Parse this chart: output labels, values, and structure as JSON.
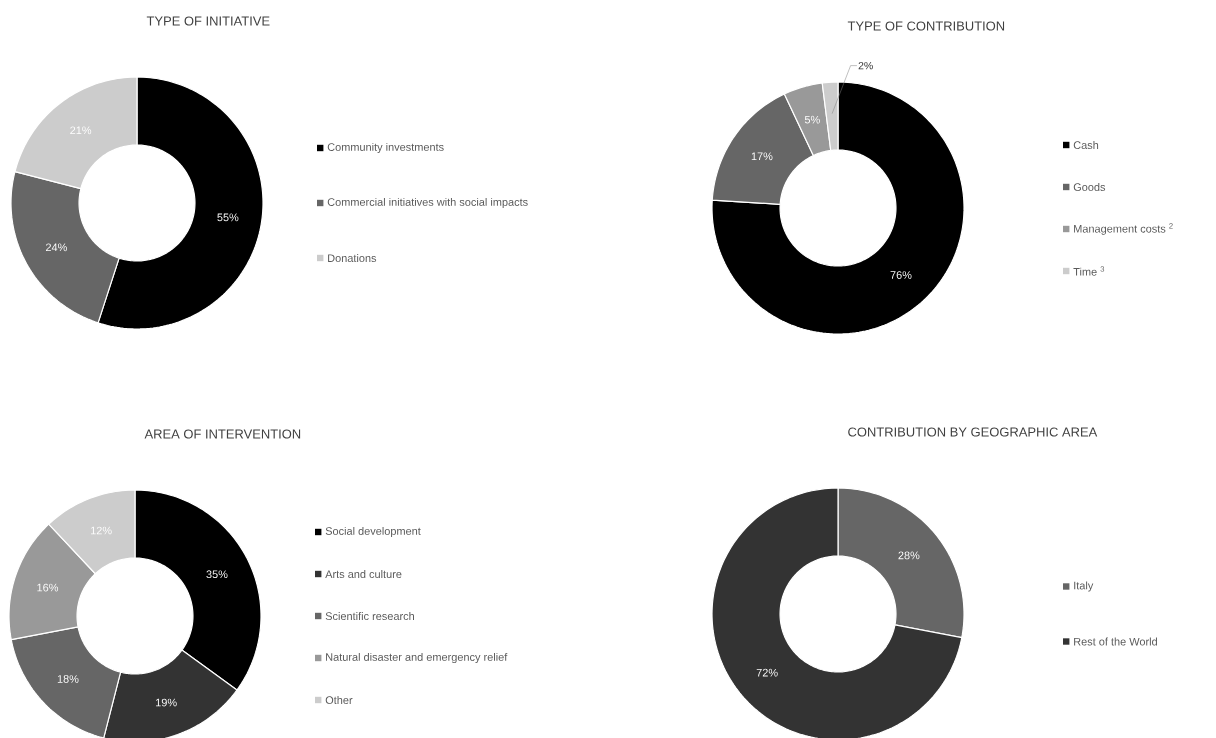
{
  "chart_data": [
    {
      "type": "donut",
      "title": "TYPE OF INITIATIVE",
      "categories": [
        "Community investments",
        "Commercial initiatives with social impacts",
        "Donations"
      ],
      "values": [
        55,
        24,
        21
      ],
      "value_labels": [
        "55%",
        "24%",
        "21%"
      ],
      "colors": [
        "#000000",
        "#666666",
        "#cccccc"
      ],
      "legend": "right"
    },
    {
      "type": "donut",
      "title": "TYPE OF CONTRIBUTION",
      "categories": [
        "Cash",
        "Goods",
        "Management costs $^{2}$",
        "Time $^{3}$"
      ],
      "values": [
        76,
        17,
        5,
        2
      ],
      "value_labels": [
        "76%",
        "17%",
        "5%",
        "2%"
      ],
      "colors": [
        "#000000",
        "#666666",
        "#999999",
        "#cccccc"
      ],
      "legend": "right"
    },
    {
      "type": "donut",
      "title": "AREA OF INTERVENTION",
      "categories": [
        "Social development",
        "Arts and culture",
        "Scientific research",
        "Natural disaster and emergency relief",
        "Other"
      ],
      "values": [
        35,
        19,
        18,
        16,
        12
      ],
      "value_labels": [
        "35%",
        "19%",
        "18%",
        "16%",
        "12%"
      ],
      "colors": [
        "#000000",
        "#333333",
        "#666666",
        "#999999",
        "#cccccc"
      ],
      "legend": "right"
    },
    {
      "type": "donut",
      "title": "CONTRIBUTION BY GEOGRAPHIC AREA",
      "categories": [
        "Italy",
        "Rest of the World"
      ],
      "values": [
        28,
        72
      ],
      "value_labels": [
        "28%",
        "72%"
      ],
      "colors": [
        "#666666",
        "#333333"
      ],
      "legend": "right"
    }
  ]
}
